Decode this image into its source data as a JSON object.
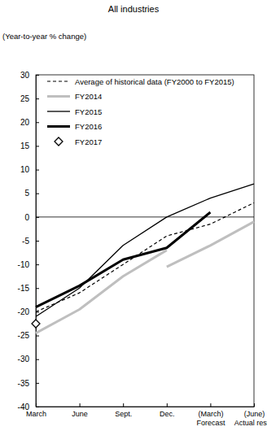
{
  "chart_data": {
    "type": "line",
    "title": "All industries",
    "y_label": "(Year-to-year % change)",
    "categories": [
      "March",
      "June",
      "Sept.",
      "Dec.",
      "(March)\nForecast",
      "(June)\nActual result"
    ],
    "ylim": [
      -40,
      30
    ],
    "yticks": [
      30,
      25,
      20,
      15,
      10,
      5,
      0,
      -5,
      -10,
      -15,
      -20,
      -25,
      -30,
      -35,
      -40
    ],
    "grid": false,
    "legend": "upper left",
    "series": [
      {
        "name": "Average of historical data (FY2000 to FY2015)",
        "color": "#000000",
        "line_style": "dashed",
        "values": [
          -20,
          -16,
          -10,
          -4,
          -1.5,
          3
        ]
      },
      {
        "name": "FY2014",
        "color": "#bfbfbf",
        "line_style": "thick",
        "values": [
          -24.5,
          -19.5,
          -12.5,
          -7,
          null,
          null
        ]
      },
      {
        "color": "#bfbfbf",
        "line_style": "thick",
        "values": [
          null,
          null,
          null,
          -10.5,
          -6,
          -1
        ]
      },
      {
        "name": "FY2015",
        "color": "#000000",
        "line_style": "solid",
        "values": [
          -21,
          -15,
          -6,
          0,
          4,
          7
        ]
      },
      {
        "name": "FY2016",
        "color": "#000000",
        "line_style": "thick",
        "values": [
          -19,
          -14.5,
          -9,
          -6.5,
          1,
          null
        ]
      },
      {
        "name": "FY2017",
        "color": "#000000",
        "line_style": "none",
        "marker": "diamond",
        "values": [
          -22.5,
          null,
          null,
          null,
          null,
          null
        ]
      }
    ]
  }
}
